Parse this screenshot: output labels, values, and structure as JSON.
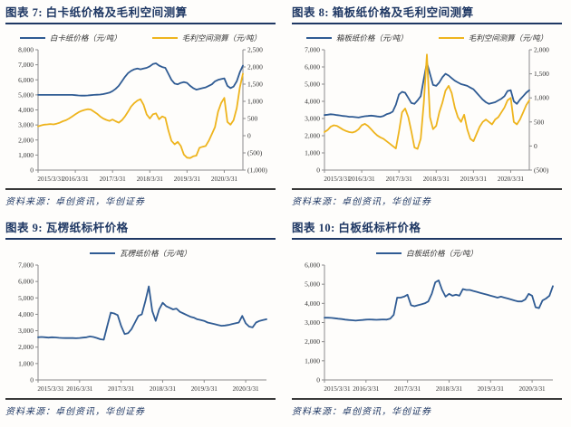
{
  "colors": {
    "navy": "#1f3864",
    "line_blue": "#2f5b93",
    "line_yellow": "#eeb41d",
    "axis": "#8c8c8c",
    "tick_text": "#333333"
  },
  "figures": [
    {
      "caption": "图表 7:  白卡纸价格及毛利空间测算",
      "source": "资料来源：卓创资讯，华创证券"
    },
    {
      "caption": "图表 8:  箱板纸价格及毛利空间测算",
      "source": "资料来源：卓创资讯，华创证券"
    },
    {
      "caption": "图表 9:  瓦楞纸标杆价格",
      "source": "资料来源：卓创资讯，华创证券"
    },
    {
      "caption": "图表 10:  白板纸标杆价格",
      "source": "资料来源：卓创资讯，华创证券"
    }
  ],
  "chart_data": [
    {
      "type": "line",
      "title": "白卡纸价格及毛利空间测算",
      "x_labels": [
        "2015/3/31",
        "2016/3/31",
        "2017/3/31",
        "2018/3/31",
        "2019/3/31",
        "2020/3/31"
      ],
      "x_tick_indices": [
        0,
        12,
        24,
        36,
        48,
        60
      ],
      "left_axis": {
        "min": 0,
        "max": 8000,
        "tick_values": [
          0,
          1000,
          2000,
          3000,
          4000,
          5000,
          6000,
          7000,
          8000
        ],
        "tick_labels": [
          "0",
          "1,000",
          "2,000",
          "3,000",
          "4,000",
          "5,000",
          "6,000",
          "7,000",
          "8,000"
        ]
      },
      "right_axis": {
        "min": -1000,
        "max": 2500,
        "tick_values": [
          -1000,
          -500,
          0,
          500,
          1000,
          1500,
          2000,
          2500
        ],
        "tick_labels": [
          "(1,000)",
          "(500)",
          "0",
          "500",
          "1,000",
          "1,500",
          "2,000",
          "2,500"
        ]
      },
      "series": [
        {
          "name": "白卡纸价格（元/吨）",
          "axis": "left",
          "color": "#2f5b93",
          "values": [
            5000,
            5000,
            5000,
            5000,
            5000,
            5000,
            5000,
            5000,
            5000,
            5000,
            5000,
            5000,
            4980,
            4960,
            4950,
            4950,
            4960,
            4980,
            5000,
            5010,
            5020,
            5050,
            5100,
            5150,
            5250,
            5400,
            5600,
            5900,
            6200,
            6450,
            6600,
            6700,
            6750,
            6700,
            6750,
            6800,
            6900,
            7050,
            7100,
            6950,
            6850,
            6800,
            6400,
            6000,
            5750,
            5700,
            5800,
            5850,
            5800,
            5600,
            5450,
            5350,
            5400,
            5450,
            5500,
            5600,
            5700,
            5900,
            6000,
            6050,
            6100,
            5600,
            5450,
            5550,
            5900,
            6500,
            6950
          ]
        },
        {
          "name": "毛利空间测算（元/吨）",
          "axis": "right",
          "color": "#eeb41d",
          "values": [
            270,
            300,
            320,
            330,
            340,
            330,
            350,
            380,
            420,
            450,
            500,
            560,
            620,
            680,
            720,
            750,
            770,
            760,
            700,
            640,
            560,
            500,
            460,
            430,
            470,
            420,
            380,
            450,
            560,
            700,
            850,
            950,
            1020,
            1060,
            900,
            620,
            500,
            620,
            650,
            480,
            560,
            520,
            150,
            -150,
            -250,
            -180,
            -300,
            -550,
            -640,
            -650,
            -600,
            -580,
            -350,
            -320,
            -300,
            -150,
            50,
            250,
            700,
            950,
            1100,
            400,
            320,
            450,
            800,
            1400,
            1800
          ]
        }
      ]
    },
    {
      "type": "line",
      "title": "箱板纸价格及毛利空间测算",
      "x_labels": [
        "2015/3/31",
        "2016/3/31",
        "2017/3/31",
        "2018/3/31",
        "2019/3/31",
        "2020/3/31"
      ],
      "x_tick_indices": [
        0,
        12,
        24,
        36,
        48,
        60
      ],
      "left_axis": {
        "min": 0,
        "max": 7000,
        "tick_values": [
          0,
          1000,
          2000,
          3000,
          4000,
          5000,
          6000,
          7000
        ],
        "tick_labels": [
          "0",
          "1,000",
          "2,000",
          "3,000",
          "4,000",
          "5,000",
          "6,000",
          "7,000"
        ]
      },
      "right_axis": {
        "min": -500,
        "max": 2000,
        "tick_values": [
          -500,
          0,
          500,
          1000,
          1500,
          2000
        ],
        "tick_labels": [
          "(500)",
          "0",
          "500",
          "1,000",
          "1,500",
          "2,000"
        ]
      },
      "series": [
        {
          "name": "箱板纸价格（元/吨）",
          "axis": "left",
          "color": "#2f5b93",
          "values": [
            3200,
            3220,
            3250,
            3230,
            3200,
            3180,
            3150,
            3130,
            3100,
            3100,
            3080,
            3060,
            3100,
            3130,
            3150,
            3170,
            3150,
            3120,
            3100,
            3150,
            3250,
            3300,
            3400,
            3800,
            4400,
            4550,
            4500,
            4200,
            3900,
            3850,
            4050,
            4300,
            5300,
            6250,
            5600,
            4950,
            4900,
            5100,
            5400,
            5600,
            5500,
            5350,
            5200,
            5100,
            5000,
            4950,
            4900,
            4800,
            4700,
            4500,
            4300,
            4100,
            3950,
            3850,
            3900,
            3950,
            4050,
            4150,
            4300,
            4600,
            4650,
            4000,
            3850,
            4100,
            4300,
            4500,
            4650
          ]
        },
        {
          "name": "毛利空间测算（元/吨）",
          "axis": "right",
          "color": "#eeb41d",
          "values": [
            290,
            330,
            400,
            430,
            420,
            380,
            340,
            310,
            290,
            280,
            300,
            350,
            430,
            460,
            420,
            350,
            280,
            220,
            180,
            150,
            100,
            50,
            0,
            -50,
            300,
            700,
            780,
            600,
            300,
            -30,
            -60,
            150,
            900,
            1900,
            600,
            350,
            420,
            700,
            900,
            1150,
            1250,
            1100,
            800,
            600,
            500,
            650,
            350,
            150,
            100,
            250,
            400,
            500,
            550,
            500,
            450,
            550,
            600,
            700,
            800,
            950,
            1000,
            500,
            450,
            550,
            700,
            850,
            950
          ]
        }
      ]
    },
    {
      "type": "line",
      "title": "瓦楞纸标杆价格",
      "x_labels": [
        "2015/3/31",
        "2016/3/31",
        "2017/3/31",
        "2018/3/31",
        "2019/3/31",
        "2020/3/31"
      ],
      "x_tick_indices": [
        0,
        12,
        24,
        36,
        48,
        60
      ],
      "left_axis": {
        "min": 0,
        "max": 7000,
        "tick_values": [
          0,
          1000,
          2000,
          3000,
          4000,
          5000,
          6000,
          7000
        ],
        "tick_labels": [
          "0",
          "1,000",
          "2,000",
          "3,000",
          "4,000",
          "5,000",
          "6,000",
          "7,000"
        ]
      },
      "series": [
        {
          "name": "瓦楞纸价格（元/吨）",
          "axis": "left",
          "color": "#2f5b93",
          "values": [
            2600,
            2620,
            2600,
            2580,
            2600,
            2590,
            2570,
            2560,
            2550,
            2560,
            2550,
            2540,
            2560,
            2580,
            2600,
            2650,
            2620,
            2560,
            2480,
            2450,
            3300,
            4100,
            4050,
            3950,
            3300,
            2800,
            2850,
            3100,
            3500,
            3900,
            4000,
            4800,
            5700,
            4200,
            3600,
            4300,
            4700,
            4500,
            4400,
            4300,
            4350,
            4150,
            4050,
            3950,
            3850,
            3800,
            3700,
            3650,
            3600,
            3500,
            3450,
            3400,
            3350,
            3300,
            3320,
            3350,
            3400,
            3450,
            3500,
            3900,
            3450,
            3250,
            3200,
            3500,
            3600,
            3650,
            3700
          ]
        }
      ]
    },
    {
      "type": "line",
      "title": "白板纸标杆价格",
      "x_labels": [
        "2015/3/31",
        "2016/3/31",
        "2017/3/31",
        "2018/3/31",
        "2019/3/31",
        "2020/3/31"
      ],
      "x_tick_indices": [
        0,
        12,
        24,
        36,
        48,
        60
      ],
      "left_axis": {
        "min": 0,
        "max": 6000,
        "tick_values": [
          0,
          1000,
          2000,
          3000,
          4000,
          5000,
          6000
        ],
        "tick_labels": [
          "0",
          "1,000",
          "2,000",
          "3,000",
          "4,000",
          "5,000",
          "6,000"
        ]
      },
      "series": [
        {
          "name": "白板纸价格（元/吨）",
          "axis": "left",
          "color": "#2f5b93",
          "values": [
            3250,
            3250,
            3240,
            3220,
            3200,
            3180,
            3150,
            3130,
            3120,
            3100,
            3120,
            3130,
            3150,
            3160,
            3150,
            3140,
            3150,
            3160,
            3150,
            3200,
            3400,
            4300,
            4300,
            4350,
            4450,
            3900,
            3850,
            3900,
            3950,
            4000,
            4100,
            4500,
            5100,
            5200,
            4700,
            4350,
            4500,
            4400,
            4450,
            4400,
            4750,
            4700,
            4700,
            4650,
            4600,
            4550,
            4500,
            4450,
            4400,
            4350,
            4300,
            4350,
            4300,
            4250,
            4200,
            4150,
            4100,
            4100,
            4200,
            4500,
            4400,
            3800,
            3750,
            4150,
            4250,
            4400,
            4900
          ]
        }
      ]
    }
  ]
}
